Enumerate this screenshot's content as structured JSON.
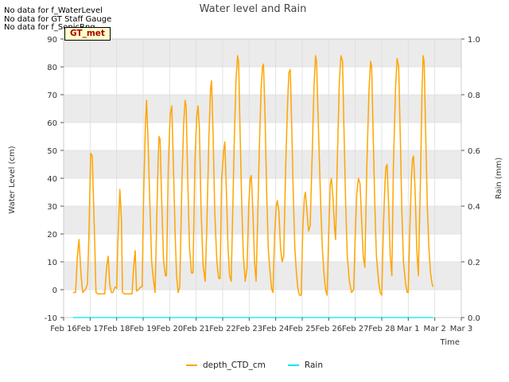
{
  "notes": [
    "No data for f_WaterLevel",
    "No data for GT Staff Gauge",
    "No data for f_SonicRng"
  ],
  "badge": "GT_met",
  "chart_data": {
    "type": "line",
    "title": "Water level and Rain",
    "xlabel": "Time",
    "ylabel_left": "Water Level (cm)",
    "ylabel_right": "Rain (mm)",
    "ylim_left": [
      -10,
      90
    ],
    "ylim_right": [
      0.0,
      1.0
    ],
    "xlim_days": [
      0,
      15
    ],
    "x_ticks": [
      "Feb 16",
      "Feb 17",
      "Feb 18",
      "Feb 19",
      "Feb 20",
      "Feb 21",
      "Feb 22",
      "Feb 23",
      "Feb 24",
      "Feb 25",
      "Feb 26",
      "Feb 27",
      "Feb 28",
      "Mar 1",
      "Mar 2",
      "Mar 3"
    ],
    "y_ticks_left": [
      -10,
      0,
      10,
      20,
      30,
      40,
      50,
      60,
      70,
      80,
      90
    ],
    "y_ticks_right": [
      "0.0",
      "0.2",
      "0.4",
      "0.6",
      "0.8",
      "1.0"
    ],
    "colors": {
      "depth": "#ffa500",
      "rain": "#00e5ee",
      "band": "#ebebeb",
      "grid": "#dcdcdc"
    },
    "series": [
      {
        "name": "depth_CTD_cm",
        "color": "#ffa500",
        "points": [
          [
            0.35,
            -1
          ],
          [
            0.45,
            -1
          ],
          [
            0.52,
            12
          ],
          [
            0.58,
            18
          ],
          [
            0.66,
            5
          ],
          [
            0.72,
            -1
          ],
          [
            0.82,
            0
          ],
          [
            0.9,
            2
          ],
          [
            0.96,
            22
          ],
          [
            1.02,
            49
          ],
          [
            1.08,
            48
          ],
          [
            1.15,
            25
          ],
          [
            1.22,
            -1
          ],
          [
            1.3,
            -1.5
          ],
          [
            1.45,
            -1.5
          ],
          [
            1.55,
            -1.5
          ],
          [
            1.62,
            8
          ],
          [
            1.68,
            12
          ],
          [
            1.74,
            2
          ],
          [
            1.8,
            -1
          ],
          [
            1.86,
            -1
          ],
          [
            1.94,
            1
          ],
          [
            2.0,
            0.5
          ],
          [
            2.05,
            18
          ],
          [
            2.12,
            36
          ],
          [
            2.18,
            25
          ],
          [
            2.22,
            -1
          ],
          [
            2.3,
            -1.5
          ],
          [
            2.45,
            -1.5
          ],
          [
            2.58,
            -1.5
          ],
          [
            2.64,
            8
          ],
          [
            2.7,
            14
          ],
          [
            2.75,
            -0.5
          ],
          [
            2.82,
            0
          ],
          [
            2.9,
            1
          ],
          [
            2.96,
            1
          ],
          [
            3.02,
            35
          ],
          [
            3.08,
            58
          ],
          [
            3.13,
            68
          ],
          [
            3.18,
            55
          ],
          [
            3.25,
            32
          ],
          [
            3.32,
            10
          ],
          [
            3.38,
            4
          ],
          [
            3.45,
            -1
          ],
          [
            3.52,
            28
          ],
          [
            3.57,
            48
          ],
          [
            3.6,
            55
          ],
          [
            3.64,
            54
          ],
          [
            3.7,
            32
          ],
          [
            3.77,
            10
          ],
          [
            3.84,
            5
          ],
          [
            3.88,
            5
          ],
          [
            3.95,
            45
          ],
          [
            4.02,
            63
          ],
          [
            4.08,
            66
          ],
          [
            4.14,
            45
          ],
          [
            4.2,
            22
          ],
          [
            4.26,
            5
          ],
          [
            4.32,
            -1
          ],
          [
            4.38,
            1
          ],
          [
            4.46,
            38
          ],
          [
            4.53,
            60
          ],
          [
            4.58,
            68
          ],
          [
            4.62,
            66
          ],
          [
            4.68,
            40
          ],
          [
            4.75,
            15
          ],
          [
            4.82,
            6
          ],
          [
            4.88,
            6
          ],
          [
            4.95,
            45
          ],
          [
            5.02,
            62
          ],
          [
            5.07,
            66
          ],
          [
            5.12,
            58
          ],
          [
            5.18,
            30
          ],
          [
            5.26,
            9
          ],
          [
            5.34,
            3
          ],
          [
            5.4,
            22
          ],
          [
            5.48,
            55
          ],
          [
            5.54,
            72
          ],
          [
            5.58,
            75
          ],
          [
            5.64,
            55
          ],
          [
            5.7,
            28
          ],
          [
            5.78,
            10
          ],
          [
            5.85,
            4
          ],
          [
            5.9,
            4
          ],
          [
            5.96,
            40
          ],
          [
            6.04,
            50
          ],
          [
            6.08,
            53
          ],
          [
            6.14,
            35
          ],
          [
            6.2,
            15
          ],
          [
            6.26,
            5
          ],
          [
            6.32,
            3
          ],
          [
            6.36,
            20
          ],
          [
            6.44,
            55
          ],
          [
            6.5,
            75
          ],
          [
            6.56,
            84
          ],
          [
            6.6,
            82
          ],
          [
            6.66,
            55
          ],
          [
            6.72,
            30
          ],
          [
            6.78,
            12
          ],
          [
            6.85,
            3
          ],
          [
            6.92,
            8
          ],
          [
            6.98,
            30
          ],
          [
            7.04,
            40
          ],
          [
            7.08,
            41
          ],
          [
            7.14,
            28
          ],
          [
            7.2,
            10
          ],
          [
            7.26,
            3
          ],
          [
            7.32,
            25
          ],
          [
            7.38,
            50
          ],
          [
            7.45,
            72
          ],
          [
            7.5,
            80
          ],
          [
            7.54,
            81
          ],
          [
            7.6,
            62
          ],
          [
            7.66,
            35
          ],
          [
            7.72,
            15
          ],
          [
            7.78,
            7
          ],
          [
            7.85,
            0
          ],
          [
            7.9,
            -1
          ],
          [
            7.96,
            20
          ],
          [
            8.02,
            30
          ],
          [
            8.06,
            32
          ],
          [
            8.12,
            28
          ],
          [
            8.18,
            15
          ],
          [
            8.24,
            10
          ],
          [
            8.3,
            12
          ],
          [
            8.38,
            45
          ],
          [
            8.45,
            68
          ],
          [
            8.5,
            78
          ],
          [
            8.55,
            79
          ],
          [
            8.6,
            60
          ],
          [
            8.66,
            35
          ],
          [
            8.72,
            15
          ],
          [
            8.78,
            6
          ],
          [
            8.84,
            0
          ],
          [
            8.9,
            -2
          ],
          [
            8.96,
            -2
          ],
          [
            9.02,
            22
          ],
          [
            9.08,
            33
          ],
          [
            9.12,
            35
          ],
          [
            9.18,
            28
          ],
          [
            9.24,
            21
          ],
          [
            9.3,
            23
          ],
          [
            9.38,
            50
          ],
          [
            9.44,
            72
          ],
          [
            9.5,
            84
          ],
          [
            9.54,
            82
          ],
          [
            9.62,
            55
          ],
          [
            9.7,
            30
          ],
          [
            9.76,
            15
          ],
          [
            9.82,
            6
          ],
          [
            9.88,
            0
          ],
          [
            9.94,
            -2
          ],
          [
            10.0,
            20
          ],
          [
            10.06,
            38
          ],
          [
            10.1,
            40
          ],
          [
            10.16,
            33
          ],
          [
            10.22,
            22
          ],
          [
            10.26,
            18
          ],
          [
            10.32,
            45
          ],
          [
            10.4,
            75
          ],
          [
            10.46,
            84
          ],
          [
            10.52,
            82
          ],
          [
            10.58,
            55
          ],
          [
            10.64,
            30
          ],
          [
            10.7,
            12
          ],
          [
            10.78,
            3
          ],
          [
            10.86,
            -1
          ],
          [
            10.94,
            0
          ],
          [
            11.0,
            20
          ],
          [
            11.06,
            35
          ],
          [
            11.12,
            40
          ],
          [
            11.18,
            38
          ],
          [
            11.24,
            25
          ],
          [
            11.3,
            12
          ],
          [
            11.36,
            8
          ],
          [
            11.44,
            45
          ],
          [
            11.52,
            72
          ],
          [
            11.58,
            82
          ],
          [
            11.62,
            80
          ],
          [
            11.68,
            55
          ],
          [
            11.74,
            30
          ],
          [
            11.8,
            12
          ],
          [
            11.88,
            3
          ],
          [
            11.94,
            -1
          ],
          [
            12.0,
            -2
          ],
          [
            12.06,
            22
          ],
          [
            12.12,
            38
          ],
          [
            12.16,
            44
          ],
          [
            12.2,
            45
          ],
          [
            12.26,
            30
          ],
          [
            12.32,
            12
          ],
          [
            12.38,
            5
          ],
          [
            12.44,
            45
          ],
          [
            12.52,
            72
          ],
          [
            12.58,
            83
          ],
          [
            12.64,
            80
          ],
          [
            12.7,
            55
          ],
          [
            12.76,
            28
          ],
          [
            12.82,
            10
          ],
          [
            12.9,
            2
          ],
          [
            12.96,
            -1
          ],
          [
            13.0,
            -1
          ],
          [
            13.06,
            22
          ],
          [
            13.12,
            40
          ],
          [
            13.16,
            47
          ],
          [
            13.2,
            48
          ],
          [
            13.26,
            35
          ],
          [
            13.32,
            15
          ],
          [
            13.38,
            5
          ],
          [
            13.46,
            40
          ],
          [
            13.52,
            72
          ],
          [
            13.56,
            84
          ],
          [
            13.6,
            82
          ],
          [
            13.66,
            55
          ],
          [
            13.72,
            30
          ],
          [
            13.78,
            15
          ],
          [
            13.84,
            6
          ],
          [
            13.9,
            2
          ],
          [
            13.94,
            1
          ]
        ]
      },
      {
        "name": "Rain",
        "color": "#00e5ee",
        "points": [
          [
            0.35,
            0.0
          ],
          [
            13.94,
            0.0
          ]
        ]
      }
    ],
    "legend": [
      "depth_CTD_cm",
      "Rain"
    ]
  }
}
